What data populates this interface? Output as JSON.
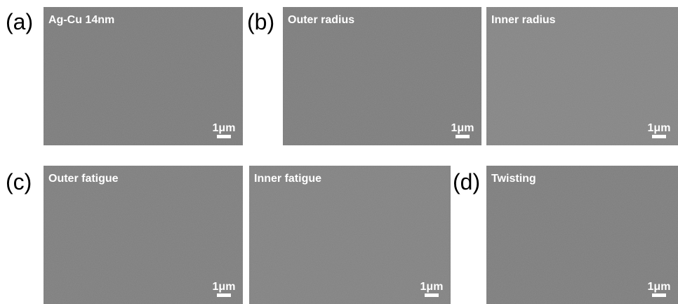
{
  "panels": [
    {
      "label": "(a)",
      "images": [
        {
          "title": "Ag-Cu 14nm",
          "scale_bar": "1μm"
        }
      ]
    },
    {
      "label": "(b)",
      "images": [
        {
          "title": "Outer radius",
          "scale_bar": "1μm"
        },
        {
          "title": "Inner radius",
          "scale_bar": "1μm"
        }
      ]
    },
    {
      "label": "(c)",
      "images": [
        {
          "title": "Outer fatigue",
          "scale_bar": "1μm"
        },
        {
          "title": "Inner fatigue",
          "scale_bar": "1μm"
        }
      ]
    },
    {
      "label": "(d)",
      "images": [
        {
          "title": "Twisting",
          "scale_bar": "1μm"
        }
      ]
    }
  ]
}
